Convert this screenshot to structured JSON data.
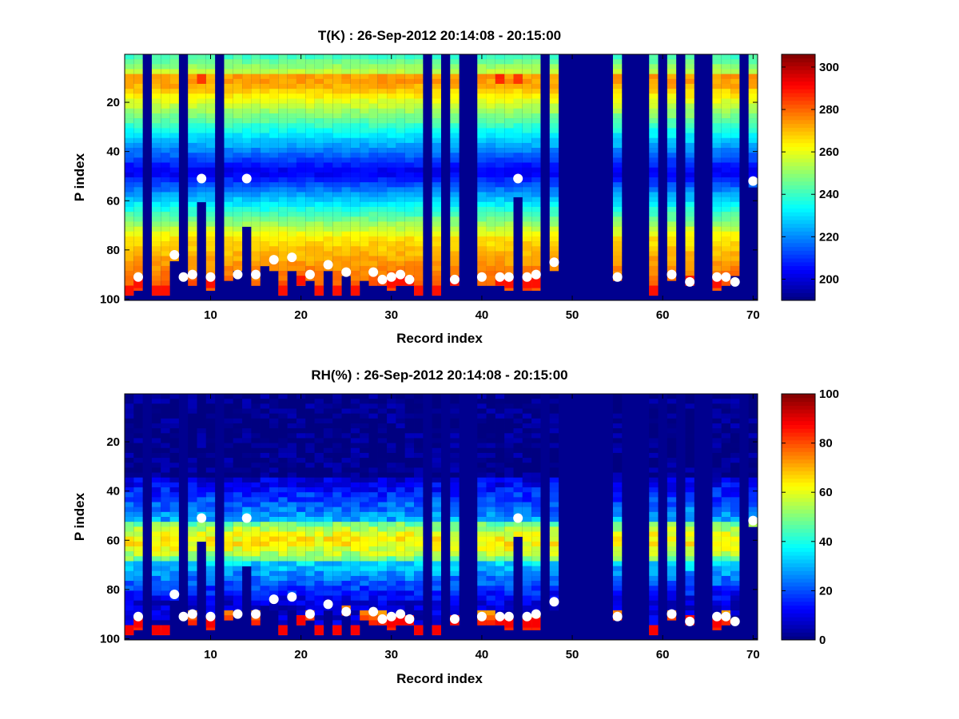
{
  "chart_data": [
    {
      "type": "heatmap",
      "title": "T(K) : 26-Sep-2012 20:14:08 - 20:15:00",
      "xlabel": "Record index",
      "ylabel": "P index",
      "xlim": [
        0.5,
        70.5
      ],
      "ylim": [
        0.5,
        100.5
      ],
      "y_reversed": true,
      "xticks": [
        10,
        20,
        30,
        40,
        50,
        60,
        70
      ],
      "yticks": [
        20,
        40,
        60,
        80,
        100
      ],
      "colorbar": {
        "min": 190,
        "max": 306,
        "ticks": [
          200,
          220,
          240,
          260,
          280,
          300
        ]
      },
      "colormap": "jet",
      "missing_color": "#00008f",
      "records": {
        "1": {
          "b": 98
        },
        "2": {
          "b": 95
        },
        "4": {
          "b": 98
        },
        "5": {
          "b": 98
        },
        "6": {
          "b": 84
        },
        "8": {
          "b": 93
        },
        "9": {
          "b": 60,
          "hot": true
        },
        "10": {
          "b": 95
        },
        "12": {
          "b": 92
        },
        "13": {
          "b": 88
        },
        "14": {
          "b": 70
        },
        "15": {
          "b": 93
        },
        "16": {
          "b": 86
        },
        "17": {
          "b": 87
        },
        "18": {
          "b": 98
        },
        "19": {
          "b": 87
        },
        "20": {
          "b": 94
        },
        "21": {
          "b": 92
        },
        "22": {
          "b": 98
        },
        "23": {
          "b": 88
        },
        "24": {
          "b": 98
        },
        "25": {
          "b": 90
        },
        "26": {
          "b": 98
        },
        "27": {
          "b": 92
        },
        "28": {
          "b": 93
        },
        "29": {
          "b": 93
        },
        "30": {
          "b": 95
        },
        "31": {
          "b": 94
        },
        "32": {
          "b": 94
        },
        "33": {
          "b": 98
        },
        "35": {
          "b": 98
        },
        "37": {
          "b": 94
        },
        "40": {
          "b": 93
        },
        "41": {
          "b": 93
        },
        "42": {
          "b": 94,
          "hot": true
        },
        "43": {
          "b": 95
        },
        "44": {
          "b": 58,
          "hot": true
        },
        "45": {
          "b": 95
        },
        "46": {
          "b": 95
        },
        "48": {
          "b": 87
        },
        "55": {
          "b": 92
        },
        "59": {
          "b": 98
        },
        "61": {
          "b": 92
        },
        "63": {
          "b": 94
        },
        "66": {
          "b": 95
        },
        "67": {
          "b": 93
        },
        "68": {
          "b": 89
        },
        "70": {
          "b": 54
        }
      },
      "markers": [
        [
          2,
          91
        ],
        [
          6,
          82
        ],
        [
          7,
          91
        ],
        [
          8,
          90
        ],
        [
          9,
          51
        ],
        [
          10,
          91
        ],
        [
          13,
          90
        ],
        [
          14,
          51
        ],
        [
          15,
          90
        ],
        [
          17,
          84
        ],
        [
          19,
          83
        ],
        [
          21,
          90
        ],
        [
          23,
          86
        ],
        [
          25,
          89
        ],
        [
          28,
          89
        ],
        [
          29,
          92
        ],
        [
          30,
          91
        ],
        [
          31,
          90
        ],
        [
          32,
          92
        ],
        [
          37,
          92
        ],
        [
          40,
          91
        ],
        [
          42,
          91
        ],
        [
          43,
          91
        ],
        [
          44,
          51
        ],
        [
          45,
          91
        ],
        [
          46,
          90
        ],
        [
          48,
          85
        ],
        [
          55,
          91
        ],
        [
          61,
          90
        ],
        [
          63,
          93
        ],
        [
          66,
          91
        ],
        [
          67,
          91
        ],
        [
          68,
          93
        ],
        [
          70,
          52
        ]
      ]
    },
    {
      "type": "heatmap",
      "title": "RH(%) : 26-Sep-2012 20:14:08 - 20:15:00",
      "xlabel": "Record index",
      "ylabel": "P index",
      "xlim": [
        0.5,
        70.5
      ],
      "ylim": [
        0.5,
        100.5
      ],
      "y_reversed": true,
      "xticks": [
        10,
        20,
        30,
        40,
        50,
        60,
        70
      ],
      "yticks": [
        20,
        40,
        60,
        80,
        100
      ],
      "colorbar": {
        "min": 0,
        "max": 100,
        "ticks": [
          0,
          20,
          40,
          60,
          80,
          100
        ]
      },
      "colormap": "jet",
      "missing_color": "#00008f",
      "note_same_columns_as_first": true,
      "markers": [
        [
          2,
          91
        ],
        [
          6,
          82
        ],
        [
          7,
          91
        ],
        [
          8,
          90
        ],
        [
          9,
          51
        ],
        [
          10,
          91
        ],
        [
          13,
          90
        ],
        [
          14,
          51
        ],
        [
          15,
          90
        ],
        [
          17,
          84
        ],
        [
          19,
          83
        ],
        [
          21,
          90
        ],
        [
          23,
          86
        ],
        [
          25,
          89
        ],
        [
          28,
          89
        ],
        [
          29,
          92
        ],
        [
          30,
          91
        ],
        [
          31,
          90
        ],
        [
          32,
          92
        ],
        [
          37,
          92
        ],
        [
          40,
          91
        ],
        [
          42,
          91
        ],
        [
          43,
          91
        ],
        [
          44,
          51
        ],
        [
          45,
          91
        ],
        [
          46,
          90
        ],
        [
          48,
          85
        ],
        [
          55,
          91
        ],
        [
          61,
          90
        ],
        [
          63,
          93
        ],
        [
          66,
          91
        ],
        [
          67,
          91
        ],
        [
          68,
          93
        ],
        [
          70,
          52
        ]
      ]
    }
  ]
}
